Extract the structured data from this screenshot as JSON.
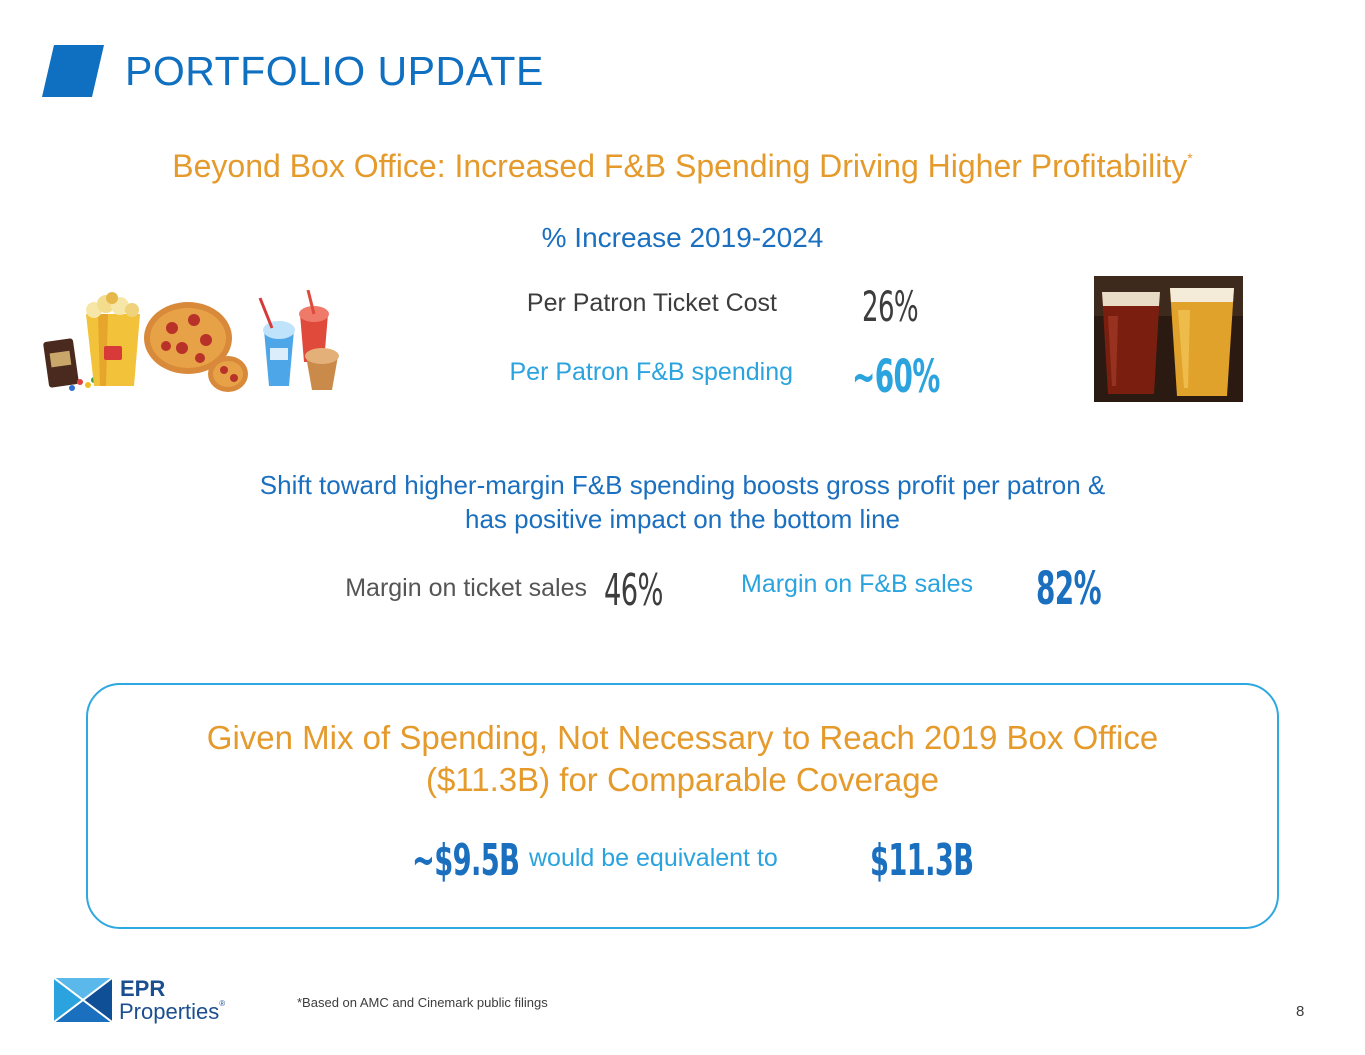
{
  "header": {
    "title": "PORTFOLIO UPDATE",
    "accent_color": "#0f6fc0"
  },
  "subtitle": {
    "text": "Beyond Box Office: Increased F&B Spending Driving Higher Profitability",
    "marker": "*"
  },
  "increase": {
    "heading": "% Increase 2019-2024",
    "rows": [
      {
        "label": "Per Patron Ticket Cost",
        "value": "26%"
      },
      {
        "label": "Per Patron F&B spending",
        "value": "~60%"
      }
    ]
  },
  "shift": {
    "line1": "Shift toward higher-margin F&B spending boosts gross profit per patron &",
    "line2": "has positive impact on the bottom line"
  },
  "margins": {
    "ticket_label": "Margin on ticket sales",
    "ticket_value": "46%",
    "fb_label": "Margin on F&B sales",
    "fb_value": "82%"
  },
  "callout": {
    "line1": "Given Mix of Spending, Not Necessary to Reach 2019 Box Office",
    "line2": "($11.3B) for Comparable Coverage",
    "left_value": "~$9.5B",
    "middle_text": "would be equivalent to",
    "right_value": "$11.3B"
  },
  "footer": {
    "logo_name": "EPR",
    "logo_sub": "Properties",
    "logo_reg": "®",
    "footnote": "*Based on AMC and Cinemark public filings",
    "page_number": "8"
  },
  "icons": [
    "concession-food-image",
    "beer-glasses-image",
    "epr-logo-icon"
  ],
  "colors": {
    "orange": "#e59a2c",
    "blue": "#1b6fbf",
    "light_blue": "#2aa3de",
    "gray": "#3d3d3d"
  }
}
